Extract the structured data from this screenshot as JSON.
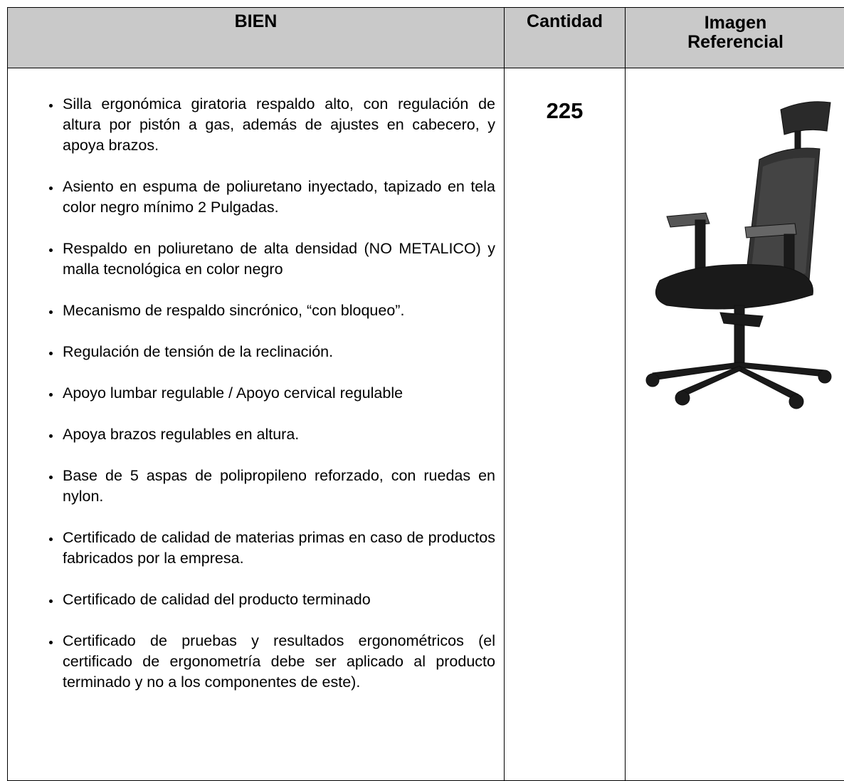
{
  "header": {
    "columns": [
      "BIEN",
      "Cantidad",
      "Imagen Referencial"
    ]
  },
  "quantity": 225,
  "items": [
    "Silla ergonómica giratoria respaldo alto, con regulación de altura por pistón a gas, además de ajustes en cabecero, y apoya brazos.",
    "Asiento en espuma de poliuretano inyectado, tapizado en tela color negro mínimo 2 Pulgadas.",
    "Respaldo en poliuretano de alta densidad (NO METALICO) y malla tecnológica en color negro",
    "Mecanismo de respaldo sincrónico, “con bloqueo”.",
    "Regulación de tensión de la reclinación.",
    "Apoyo lumbar regulable / Apoyo cervical regulable",
    "Apoya brazos regulables en altura.",
    "Base de 5 aspas de polipropileno reforzado, con ruedas en nylon.",
    "Certificado de calidad de materias primas en caso de productos fabricados por la empresa.",
    "Certificado de calidad del producto terminado",
    "Certificado de pruebas y resultados ergonométricos (el certificado de ergonometría debe ser aplicado al producto terminado y no a los componentes de este)."
  ]
}
